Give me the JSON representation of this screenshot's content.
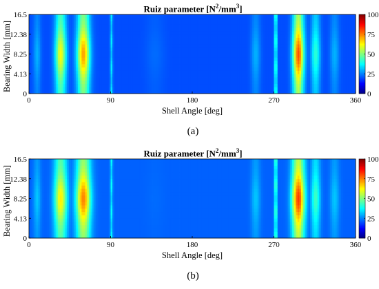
{
  "chart_data": [
    {
      "type": "heatmap",
      "caption": "(a)",
      "title_main": "Ruiz parameter [N",
      "title_sup1": "2",
      "title_mid": "/mm",
      "title_sup2": "3",
      "title_end": "]",
      "xlabel": "Shell Angle [deg]",
      "ylabel": "Bearing Width [mm]",
      "xlim": [
        0,
        360
      ],
      "ylim": [
        0,
        16.5
      ],
      "x_ticks": [
        "0",
        "90",
        "180",
        "270",
        "360"
      ],
      "x_tick_values": [
        0,
        90,
        180,
        270,
        360
      ],
      "y_ticks": [
        "0",
        "4.13",
        "8.25",
        "12.38",
        "16.5"
      ],
      "y_tick_values": [
        0,
        4.125,
        8.25,
        12.375,
        16.5
      ],
      "colorbar_ticks": [
        "0",
        "25",
        "50",
        "75",
        "100"
      ],
      "colorbar_range": [
        0,
        100
      ],
      "colormap": "jet",
      "hotspots": [
        {
          "angle": 9,
          "width_deg": 4,
          "value": 30
        },
        {
          "angle": 35,
          "width_deg": 6,
          "value": 62
        },
        {
          "angle": 60,
          "width_deg": 7,
          "value": 72
        },
        {
          "angle": 91,
          "width_deg": 1.5,
          "value": 36
        },
        {
          "angle": 139,
          "width_deg": 10,
          "value": 23
        },
        {
          "angle": 250,
          "width_deg": 5,
          "value": 30
        },
        {
          "angle": 272,
          "width_deg": 1.5,
          "value": 48
        },
        {
          "angle": 297,
          "width_deg": 6,
          "value": 80
        },
        {
          "angle": 316,
          "width_deg": 5,
          "value": 42
        },
        {
          "angle": 337,
          "width_deg": 5,
          "value": 30
        }
      ],
      "base_value": 20
    },
    {
      "type": "heatmap",
      "caption": "(b)",
      "title_main": "Ruiz parameter [N",
      "title_sup1": "2",
      "title_mid": "/mm",
      "title_sup2": "3",
      "title_end": "]",
      "xlabel": "Shell Angle [deg]",
      "ylabel": "Bearing Width [mm]",
      "xlim": [
        0,
        360
      ],
      "ylim": [
        0,
        16.5
      ],
      "x_ticks": [
        "0",
        "90",
        "180",
        "270",
        "360"
      ],
      "x_tick_values": [
        0,
        90,
        180,
        270,
        360
      ],
      "y_ticks": [
        "0",
        "4.13",
        "8.25",
        "12.38",
        "16.5"
      ],
      "y_tick_values": [
        0,
        4.125,
        8.25,
        12.375,
        16.5
      ],
      "colorbar_ticks": [
        "0",
        "25",
        "50",
        "75",
        "100"
      ],
      "colorbar_range": [
        0,
        100
      ],
      "colormap": "jet",
      "hotspots": [
        {
          "angle": 9,
          "width_deg": 4,
          "value": 32
        },
        {
          "angle": 35,
          "width_deg": 7,
          "value": 64
        },
        {
          "angle": 60,
          "width_deg": 8,
          "value": 75
        },
        {
          "angle": 91,
          "width_deg": 1.5,
          "value": 38
        },
        {
          "angle": 139,
          "width_deg": 10,
          "value": 23
        },
        {
          "angle": 250,
          "width_deg": 5,
          "value": 32
        },
        {
          "angle": 272,
          "width_deg": 1.5,
          "value": 50
        },
        {
          "angle": 297,
          "width_deg": 7,
          "value": 82
        },
        {
          "angle": 316,
          "width_deg": 5,
          "value": 44
        },
        {
          "angle": 337,
          "width_deg": 5,
          "value": 32
        }
      ],
      "base_value": 22
    }
  ]
}
